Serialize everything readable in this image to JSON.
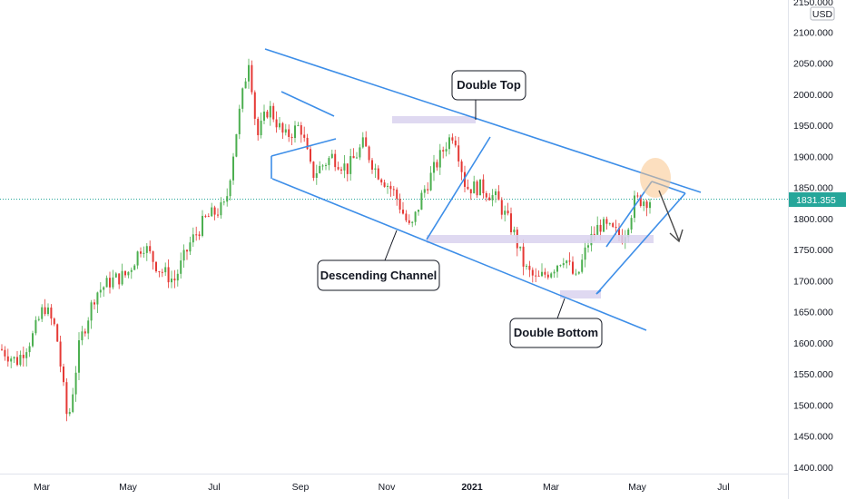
{
  "chart_data": {
    "type": "candlestick",
    "currency": "USD",
    "last_price": "1831.355",
    "ylim": [
      1400,
      2150
    ],
    "y_ticks": [
      "2150.000",
      "2100.000",
      "2050.000",
      "2000.000",
      "1950.000",
      "1900.000",
      "1850.000",
      "1800.000",
      "1750.000",
      "1700.000",
      "1650.000",
      "1600.000",
      "1550.000",
      "1500.000",
      "1450.000",
      "1400.000"
    ],
    "x_ticks": [
      "Mar",
      "May",
      "Jul",
      "Sep",
      "Nov",
      "2021",
      "Mar",
      "May",
      "Jul"
    ],
    "grid": false,
    "annotations": {
      "double_top": "Double Top",
      "descending_channel": "Descending Channel",
      "double_bottom": "Double Bottom"
    },
    "colors": {
      "up": "#4caf50",
      "down": "#e53935",
      "trendline": "#3d8ee8",
      "zone": "#d9d2ee",
      "highlight": "#f9c48a",
      "price_line": "#26a69a",
      "arrow": "#4a4a4a"
    },
    "approx_close_path": [
      [
        0,
        1590
      ],
      [
        0.02,
        1570
      ],
      [
        0.04,
        1610
      ],
      [
        0.055,
        1660
      ],
      [
        0.07,
        1620
      ],
      [
        0.085,
        1470
      ],
      [
        0.1,
        1600
      ],
      [
        0.12,
        1680
      ],
      [
        0.14,
        1700
      ],
      [
        0.16,
        1710
      ],
      [
        0.18,
        1760
      ],
      [
        0.2,
        1720
      ],
      [
        0.22,
        1700
      ],
      [
        0.24,
        1760
      ],
      [
        0.26,
        1800
      ],
      [
        0.285,
        1820
      ],
      [
        0.3,
        1950
      ],
      [
        0.315,
        2060
      ],
      [
        0.325,
        1930
      ],
      [
        0.34,
        1980
      ],
      [
        0.36,
        1930
      ],
      [
        0.38,
        1950
      ],
      [
        0.395,
        1870
      ],
      [
        0.42,
        1900
      ],
      [
        0.44,
        1880
      ],
      [
        0.46,
        1920
      ],
      [
        0.475,
        1880
      ],
      [
        0.5,
        1840
      ],
      [
        0.52,
        1780
      ],
      [
        0.535,
        1840
      ],
      [
        0.55,
        1880
      ],
      [
        0.565,
        1920
      ],
      [
        0.575,
        1940
      ],
      [
        0.59,
        1850
      ],
      [
        0.61,
        1850
      ],
      [
        0.63,
        1830
      ],
      [
        0.65,
        1780
      ],
      [
        0.665,
        1720
      ],
      [
        0.68,
        1700
      ],
      [
        0.7,
        1720
      ],
      [
        0.715,
        1740
      ],
      [
        0.73,
        1700
      ],
      [
        0.745,
        1760
      ],
      [
        0.76,
        1790
      ],
      [
        0.775,
        1780
      ],
      [
        0.79,
        1770
      ],
      [
        0.805,
        1830
      ]
    ]
  }
}
